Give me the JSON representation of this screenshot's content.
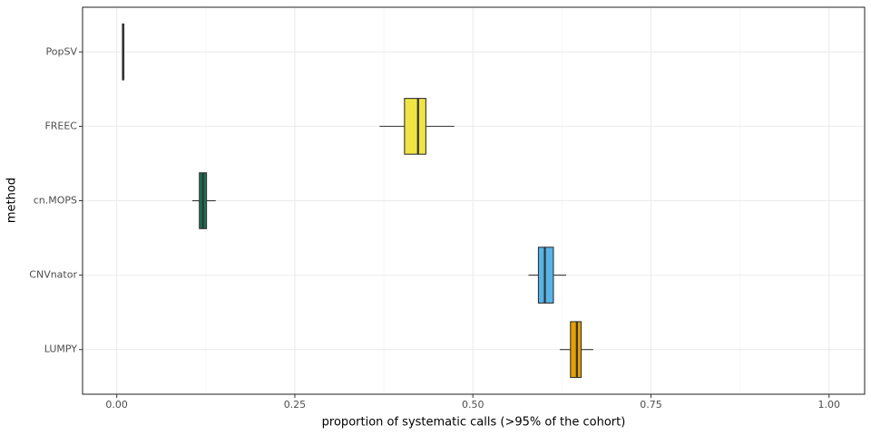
{
  "chart_data": {
    "type": "boxplot",
    "orientation": "horizontal",
    "x_label": "proportion of systematic calls (>95% of the cohort)",
    "y_label": "method",
    "categories": [
      "PopSV",
      "FREEC",
      "cn.MOPS",
      "CNVnator",
      "LUMPY"
    ],
    "colors": [
      "#333333",
      "#f0e442",
      "#137555",
      "#56b4e9",
      "#e69f00"
    ],
    "boxes": [
      {
        "whislo": 0.008,
        "q1": 0.008,
        "med": 0.009,
        "q3": 0.01,
        "whishi": 0.01
      },
      {
        "whislo": 0.369,
        "q1": 0.404,
        "med": 0.423,
        "q3": 0.434,
        "whishi": 0.474
      },
      {
        "whislo": 0.106,
        "q1": 0.116,
        "med": 0.121,
        "q3": 0.126,
        "whishi": 0.139
      },
      {
        "whislo": 0.578,
        "q1": 0.592,
        "med": 0.601,
        "q3": 0.613,
        "whishi": 0.631
      },
      {
        "whislo": 0.622,
        "q1": 0.637,
        "med": 0.646,
        "q3": 0.652,
        "whishi": 0.669
      }
    ],
    "xlim": [
      -0.048,
      1.05
    ],
    "xticks": [
      {
        "value": 0,
        "label": "0.00"
      },
      0.25,
      {
        "value": 0.5,
        "label": "0.50"
      },
      0.75,
      {
        "value": 1,
        "label": "1.00"
      }
    ],
    "grid": true
  }
}
